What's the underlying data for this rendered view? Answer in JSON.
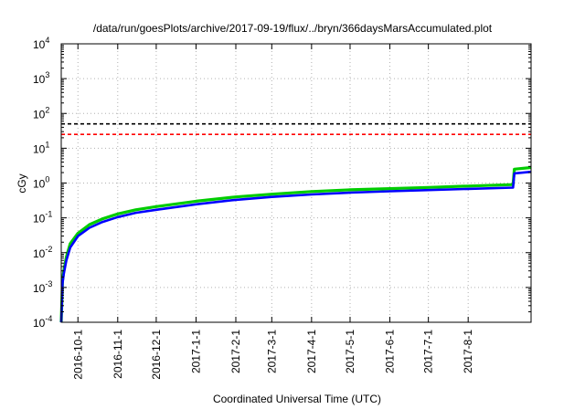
{
  "chart_data": {
    "type": "line",
    "title": "/data/run/goesPlots/archive/2017-09-19/flux/../bryn/366daysMarsAccumulated.plot",
    "xlabel": "Coordinated Universal Time (UTC)",
    "ylabel": "cGy",
    "yscale": "log",
    "ylim": [
      0.0001,
      10000
    ],
    "xlim": [
      "2016-09-18",
      "2017-09-19"
    ],
    "y_ticks": [
      {
        "base": "10",
        "exp": "-4",
        "value": 0.0001
      },
      {
        "base": "10",
        "exp": "-3",
        "value": 0.001
      },
      {
        "base": "10",
        "exp": "-2",
        "value": 0.01
      },
      {
        "base": "10",
        "exp": "-1",
        "value": 0.1
      },
      {
        "base": "10",
        "exp": "0",
        "value": 1
      },
      {
        "base": "10",
        "exp": "1",
        "value": 10
      },
      {
        "base": "10",
        "exp": "2",
        "value": 100
      },
      {
        "base": "10",
        "exp": "3",
        "value": 1000
      },
      {
        "base": "10",
        "exp": "4",
        "value": 10000
      }
    ],
    "x_ticks": [
      "2016-10-1",
      "2016-11-1",
      "2016-12-1",
      "2017-1-1",
      "2017-2-1",
      "2017-3-1",
      "2017-4-1",
      "2017-5-1",
      "2017-6-1",
      "2017-7-1",
      "2017-8-1"
    ],
    "grid": true,
    "reference_lines": [
      {
        "y": 50,
        "color": "#000000",
        "style": "dashed"
      },
      {
        "y": 25,
        "color": "#ff0000",
        "style": "dashed"
      }
    ],
    "series": [
      {
        "color": "#00cc00",
        "x": [
          "2016-09-18",
          "2016-09-19",
          "2016-09-20",
          "2016-09-22",
          "2016-09-25",
          "2016-10-01",
          "2016-10-10",
          "2016-10-20",
          "2016-11-01",
          "2016-11-15",
          "2016-12-01",
          "2017-01-01",
          "2017-02-01",
          "2017-03-01",
          "2017-04-01",
          "2017-05-01",
          "2017-06-01",
          "2017-07-01",
          "2017-08-01",
          "2017-09-05",
          "2017-09-06",
          "2017-09-19"
        ],
        "y": [
          0.0001,
          0.0016,
          0.003,
          0.0075,
          0.018,
          0.036,
          0.064,
          0.093,
          0.13,
          0.17,
          0.21,
          0.3,
          0.4,
          0.48,
          0.57,
          0.64,
          0.69,
          0.75,
          0.82,
          0.9,
          2.5,
          2.8
        ]
      },
      {
        "color": "#0000ff",
        "x": [
          "2016-09-18",
          "2016-09-19",
          "2016-09-20",
          "2016-09-22",
          "2016-09-25",
          "2016-10-01",
          "2016-10-10",
          "2016-10-20",
          "2016-11-01",
          "2016-11-15",
          "2016-12-01",
          "2017-01-01",
          "2017-02-01",
          "2017-03-01",
          "2017-04-01",
          "2017-05-01",
          "2017-06-01",
          "2017-07-01",
          "2017-08-01",
          "2017-09-05",
          "2017-09-06",
          "2017-09-19"
        ],
        "y": [
          0.0001,
          0.0013,
          0.0025,
          0.006,
          0.014,
          0.03,
          0.052,
          0.076,
          0.105,
          0.14,
          0.17,
          0.245,
          0.33,
          0.4,
          0.47,
          0.53,
          0.58,
          0.63,
          0.68,
          0.74,
          1.9,
          2.1
        ]
      }
    ]
  }
}
